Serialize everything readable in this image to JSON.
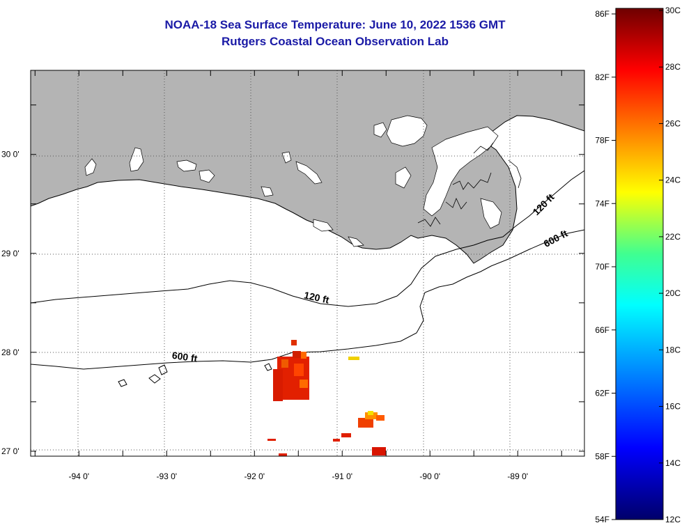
{
  "title": "NOAA-18 Sea Surface Temperature:  June 10, 2022 1536 GMT",
  "subtitle": "Rutgers Coastal Ocean Observation Lab",
  "map": {
    "lon_range": [
      -94.55,
      -88.24
    ],
    "lat_range": [
      26.95,
      30.85
    ],
    "lon_ticks": [
      {
        "lon": -94,
        "label": "-94 0'"
      },
      {
        "lon": -93,
        "label": "-93 0'"
      },
      {
        "lon": -92,
        "label": "-92 0'"
      },
      {
        "lon": -91,
        "label": "-91 0'"
      },
      {
        "lon": -90,
        "label": "-90 0'"
      },
      {
        "lon": -89,
        "label": "-89 0'"
      }
    ],
    "lat_ticks": [
      {
        "lat": 30,
        "label": "30 0'"
      },
      {
        "lat": 29,
        "label": "29 0'"
      },
      {
        "lat": 28,
        "label": "28 0'"
      },
      {
        "lat": 27,
        "label": "27 0'"
      }
    ],
    "land_color": "#b4b4b4",
    "contour_labels": [
      {
        "text": "120 ft",
        "lon": -91.3,
        "lat": 28.52,
        "rotate": 12
      },
      {
        "text": "600 ft",
        "lon": -92.8,
        "lat": 27.92,
        "rotate": 8
      },
      {
        "text": "120 ft",
        "lon": -88.68,
        "lat": 29.47,
        "rotate": -45
      },
      {
        "text": "600 ft",
        "lon": -88.55,
        "lat": 29.12,
        "rotate": -28
      }
    ]
  },
  "colorbar": {
    "f_labels": [
      "86F",
      "82F",
      "78F",
      "74F",
      "70F",
      "66F",
      "62F",
      "58F",
      "54F"
    ],
    "c_labels": [
      "30C",
      "28C",
      "26C",
      "24C",
      "22C",
      "20C",
      "18C",
      "16C",
      "14C",
      "12C"
    ],
    "stops": [
      "#7a0000",
      "#ff0000",
      "#ff8000",
      "#ffff00",
      "#00ff80",
      "#00ffff",
      "#0080ff",
      "#0000ff",
      "#000080"
    ]
  }
}
